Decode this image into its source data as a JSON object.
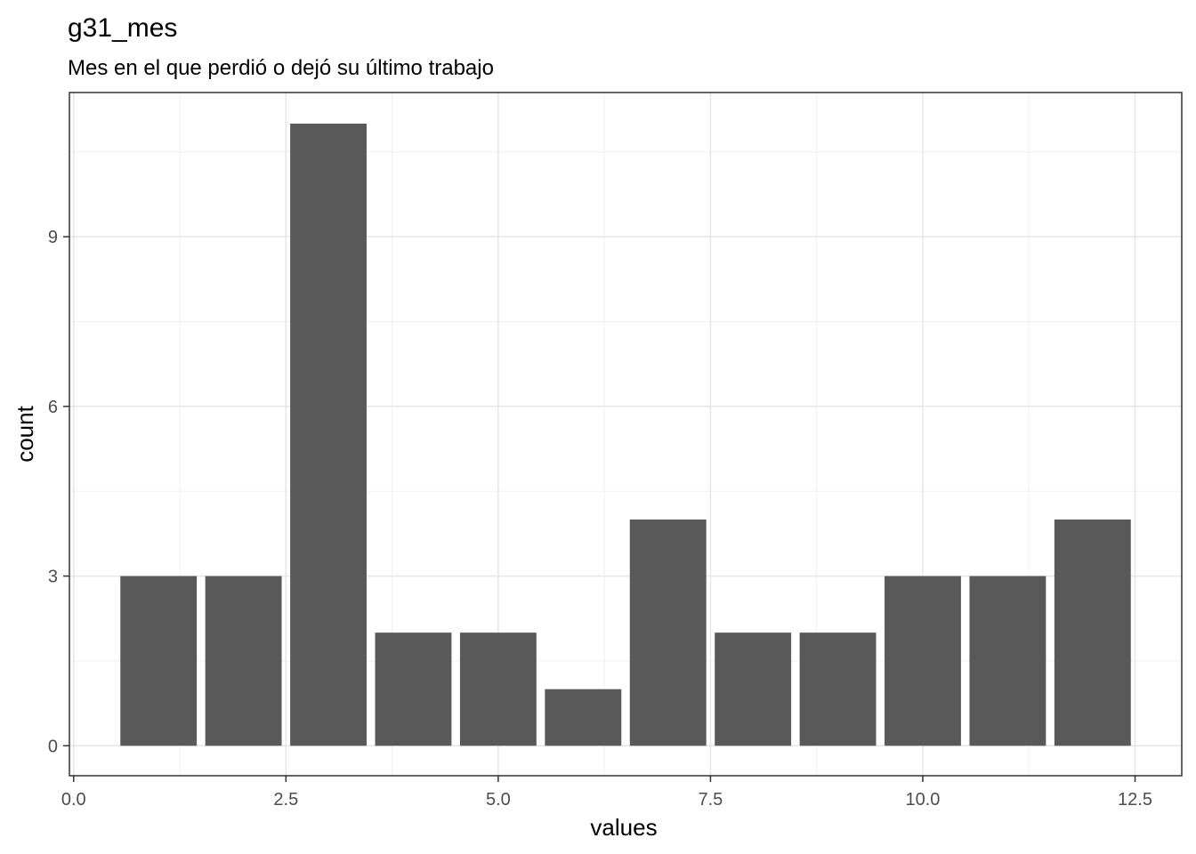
{
  "chart_data": {
    "type": "bar",
    "title": "g31_mes",
    "subtitle": "Mes en el que perdió o dejó su último trabajo",
    "xlabel": "values",
    "ylabel": "count",
    "categories": [
      1,
      2,
      3,
      4,
      5,
      6,
      7,
      8,
      9,
      10,
      11,
      12
    ],
    "values": [
      3,
      3,
      11,
      2,
      2,
      1,
      4,
      2,
      2,
      3,
      3,
      4
    ],
    "xlim": [
      -0.05,
      13.05
    ],
    "ylim": [
      -0.53,
      11.55
    ],
    "x_ticks": [
      0,
      2.5,
      5,
      7.5,
      10,
      12.5
    ],
    "x_tick_labels": [
      "0.0",
      "2.5",
      "5.0",
      "7.5",
      "10.0",
      "12.5"
    ],
    "y_ticks": [
      0,
      3,
      6,
      9
    ],
    "y_tick_labels": [
      "0",
      "3",
      "6",
      "9"
    ],
    "grid": true,
    "bar_color": "#595959"
  }
}
